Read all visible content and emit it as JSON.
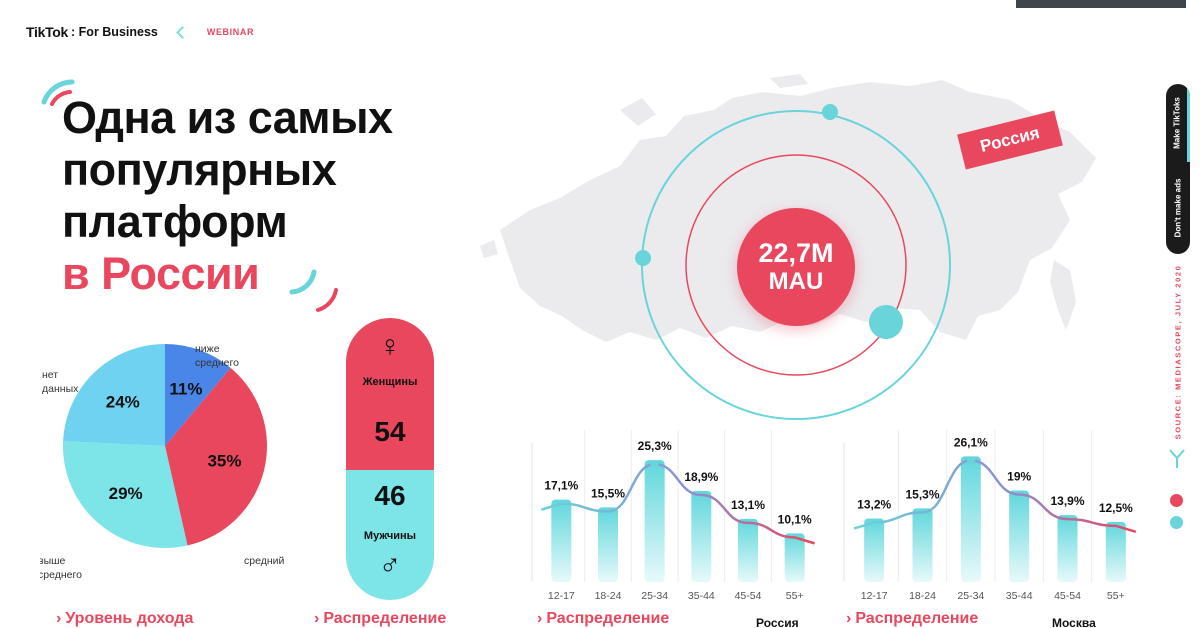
{
  "header": {
    "logo": "TikTok",
    "logo_sub": ": For Business",
    "tag": "WEBINAR"
  },
  "title": {
    "lines": [
      "Одна из самых",
      "популярных",
      "платформ"
    ],
    "highlight": "в России"
  },
  "map": {
    "region_tag": "Россия",
    "mau_value": "22,7M",
    "mau_unit": "MAU"
  },
  "side": {
    "make_label": "Make TikToks",
    "dont_label": "Don't make ads",
    "source": "SOURCE: MEDIASCOPE, JULY 2020"
  },
  "income_chart": {
    "type": "pie",
    "slices": [
      {
        "label": "ниже среднего",
        "value": 11,
        "display": "11%",
        "color": "#4a86e8"
      },
      {
        "label": "средний",
        "value": 35,
        "display": "35%",
        "color": "#e8475e"
      },
      {
        "label": "выше среднего",
        "value": 29,
        "display": "29%",
        "color": "#7de4e8"
      },
      {
        "label": "нет данных",
        "value": 24,
        "display": "24%",
        "color": "#6ed2f0"
      }
    ],
    "label_lines": {
      "below": [
        "ниже",
        "среднего"
      ],
      "avg": [
        "средний"
      ],
      "above": [
        "выше",
        "среднего"
      ],
      "nodata": [
        "нет",
        "данных"
      ]
    },
    "section_title": "Уровень дохода"
  },
  "gender": {
    "female_label": "Женщины",
    "female_value": "54",
    "male_label": "Мужчины",
    "male_value": "46",
    "female_icon": "♀",
    "male_icon": "♂",
    "section_title": "Распределение"
  },
  "chart_data": [
    {
      "type": "bar",
      "categories": [
        "12-17",
        "18-24",
        "25-34",
        "35-44",
        "45-54",
        "55+"
      ],
      "values": [
        17.1,
        15.5,
        25.3,
        18.9,
        13.1,
        10.1
      ],
      "labels": [
        "17,1%",
        "15,5%",
        "25,3%",
        "18,9%",
        "13,1%",
        "10,1%"
      ],
      "region": "Россия",
      "section_title": "Распределение"
    },
    {
      "type": "bar",
      "categories": [
        "12-17",
        "18-24",
        "25-34",
        "35-44",
        "45-54",
        "55+"
      ],
      "values": [
        13.2,
        15.3,
        26.1,
        19,
        13.9,
        12.5
      ],
      "labels": [
        "13,2%",
        "15,3%",
        "26,1%",
        "19%",
        "13,9%",
        "12,5%"
      ],
      "region": "Москва",
      "section_title": "Распределение"
    }
  ],
  "colors": {
    "accent_red": "#e8475e",
    "accent_cyan": "#69d4d9",
    "map_gray": "#ebebee"
  }
}
